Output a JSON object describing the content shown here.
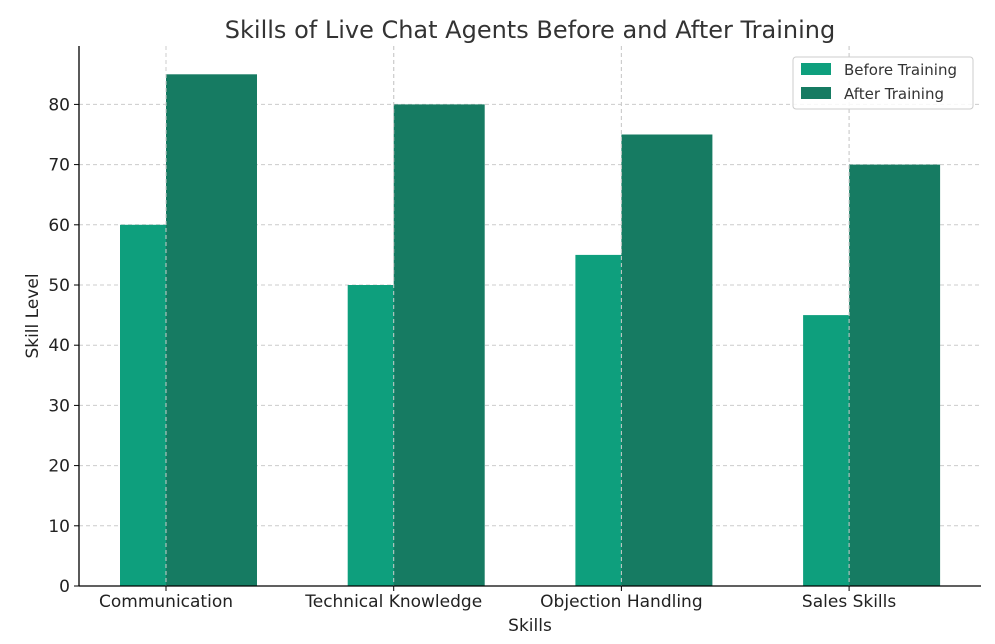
{
  "chart_data": {
    "type": "bar",
    "title": "Skills of Live Chat Agents Before and After Training",
    "xlabel": "Skills",
    "ylabel": "Skill Level",
    "categories": [
      "Communication",
      "Technical Knowledge",
      "Objection Handling",
      "Sales Skills"
    ],
    "series": [
      {
        "name": "Before Training",
        "values": [
          60,
          50,
          55,
          45
        ],
        "color": "#0e9f7d"
      },
      {
        "name": "After Training",
        "values": [
          85,
          80,
          75,
          70
        ],
        "color": "#167b62"
      }
    ],
    "ylim": [
      0,
      90
    ],
    "yticks": [
      0,
      10,
      20,
      30,
      40,
      50,
      60,
      70,
      80
    ],
    "grid": true,
    "legend": "top-right"
  }
}
